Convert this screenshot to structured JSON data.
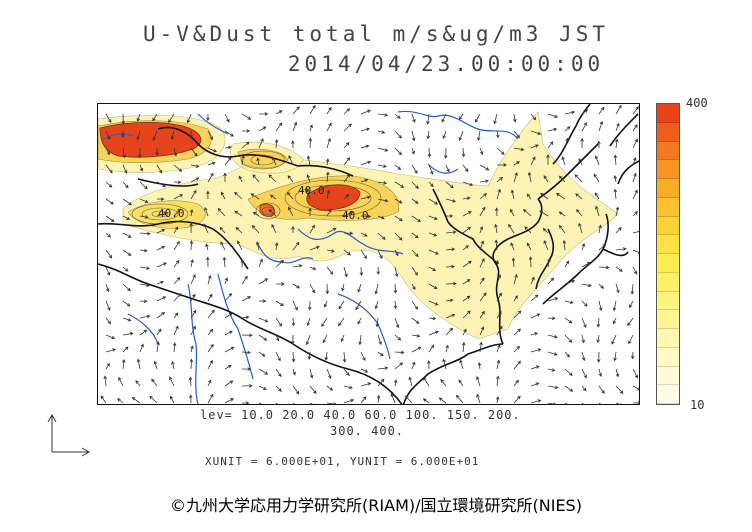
{
  "header": {
    "title": "U-V&Dust total m/s&ug/m3 JST",
    "datetime": "2014/04/23.00:00:00"
  },
  "colorbar": {
    "max_label": "400",
    "min_label": "10",
    "colors": [
      "#e6451b",
      "#ef5e1d",
      "#f4781f",
      "#f79422",
      "#f9ad27",
      "#fbc12e",
      "#fcd337",
      "#fde241",
      "#feec53",
      "#fff067",
      "#fff37f",
      "#fff597",
      "#fff7af",
      "#fff9c4",
      "#fffbd6",
      "#fffce4"
    ]
  },
  "contour_labels": {
    "a": "40.0",
    "b": "40.0",
    "c": "40.0"
  },
  "legend": {
    "lev_line1": "lev= 10.0 20.0 40.0 60.0 100. 150. 200.",
    "lev_line2": "300. 400.",
    "unit_line": "XUNIT = 6.000E+01, YUNIT = 6.000E+01"
  },
  "footer": {
    "copyright": "©九州大学応用力学研究所(RIAM)/国立環境研究所(NIES)"
  },
  "colors": {
    "coast": "#111111",
    "rivers": "#1f5fd6",
    "arrows": "#333333",
    "dust_high": "#e6451b",
    "dust_mid": "#f8c53a",
    "dust_low": "#fdf3b5"
  }
}
